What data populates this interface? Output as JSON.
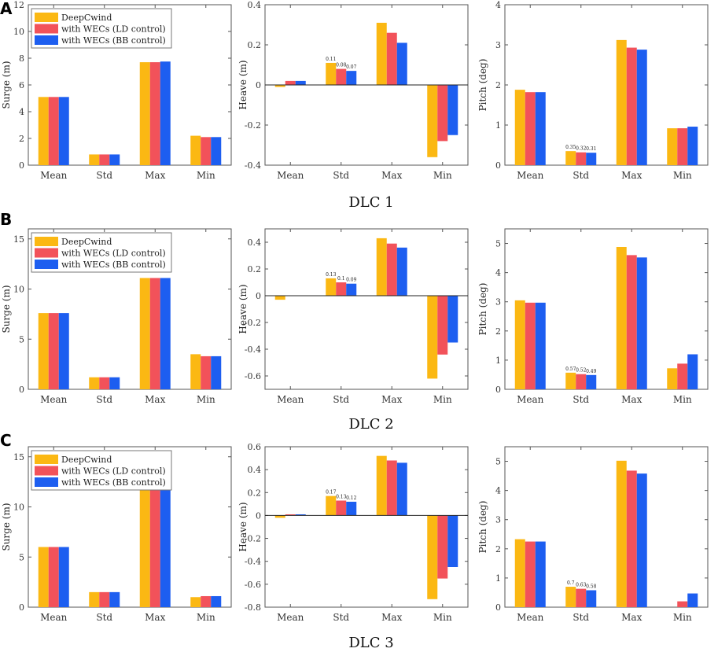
{
  "colors": {
    "DeepCwind": "#fbb813",
    "with WECs (LD control)": "#f2525a",
    "with WECs (BB control)": "#1d5ef0",
    "axis": "#555555",
    "zero_line": "#222222"
  },
  "rows": [
    {
      "letter": "A",
      "title": "DLC 1",
      "charts": [
        {
          "type": "bar",
          "ylabel": "Surge (m)",
          "xlabel": "",
          "categories": [
            "Mean",
            "Std",
            "Max",
            "Min"
          ],
          "ylim": [
            0,
            12
          ],
          "yticks": [
            0,
            2,
            4,
            6,
            8,
            10,
            12
          ],
          "ytick_labels": [
            "0",
            "2",
            "4",
            "6",
            "8",
            "10",
            "12"
          ],
          "legend": [
            "DeepCwind",
            "with WECs (LD control)",
            "with WECs (BB control)"
          ],
          "series": [
            {
              "name": "DeepCwind",
              "values": [
                5.1,
                0.8,
                7.7,
                2.2
              ]
            },
            {
              "name": "with WECs (LD control)",
              "values": [
                5.1,
                0.8,
                7.7,
                2.1
              ]
            },
            {
              "name": "with WECs (BB control)",
              "values": [
                5.1,
                0.8,
                7.75,
                2.1
              ]
            }
          ]
        },
        {
          "type": "bar",
          "ylabel": "Heave (m)",
          "xlabel": "",
          "categories": [
            "Mean",
            "Std",
            "Max",
            "Min"
          ],
          "ylim": [
            -0.4,
            0.4
          ],
          "yticks": [
            -0.4,
            -0.2,
            0,
            0.2,
            0.4
          ],
          "ytick_labels": [
            "-0.4",
            "-0.2",
            "0",
            "0.2",
            "0.4"
          ],
          "series": [
            {
              "name": "DeepCwind",
              "values": [
                -0.01,
                0.11,
                0.31,
                -0.36
              ]
            },
            {
              "name": "with WECs (LD control)",
              "values": [
                0.02,
                0.08,
                0.26,
                -0.28
              ]
            },
            {
              "name": "with WECs (BB control)",
              "values": [
                0.02,
                0.07,
                0.21,
                -0.25
              ]
            }
          ],
          "annotations": [
            {
              "category": "Std",
              "labels": [
                "0.11",
                "0.08",
                "0.07"
              ]
            }
          ]
        },
        {
          "type": "bar",
          "ylabel": "Pitch (deg)",
          "xlabel": "",
          "categories": [
            "Mean",
            "Std",
            "Max",
            "Min"
          ],
          "ylim": [
            0,
            4
          ],
          "yticks": [
            0,
            1,
            2,
            3,
            4
          ],
          "ytick_labels": [
            "0",
            "1",
            "2",
            "3",
            "4"
          ],
          "series": [
            {
              "name": "DeepCwind",
              "values": [
                1.88,
                0.35,
                3.12,
                0.92
              ]
            },
            {
              "name": "with WECs (LD control)",
              "values": [
                1.82,
                0.32,
                2.93,
                0.92
              ]
            },
            {
              "name": "with WECs (BB control)",
              "values": [
                1.82,
                0.31,
                2.88,
                0.96
              ]
            }
          ],
          "annotations": [
            {
              "category": "Std",
              "labels": [
                "0.35",
                "0.32",
                "0.31"
              ]
            }
          ]
        }
      ]
    },
    {
      "letter": "B",
      "title": "DLC 2",
      "charts": [
        {
          "type": "bar",
          "ylabel": "Surge (m)",
          "xlabel": "",
          "categories": [
            "Mean",
            "Std",
            "Max",
            "Min"
          ],
          "ylim": [
            0,
            16
          ],
          "yticks": [
            0,
            5,
            10,
            15
          ],
          "ytick_labels": [
            "0",
            "5",
            "10",
            "15"
          ],
          "legend": [
            "DeepCwind",
            "with WECs (LD control)",
            "with WECs (BB control)"
          ],
          "series": [
            {
              "name": "DeepCwind",
              "values": [
                7.6,
                1.2,
                11.1,
                3.5
              ]
            },
            {
              "name": "with WECs (LD control)",
              "values": [
                7.6,
                1.2,
                11.1,
                3.3
              ]
            },
            {
              "name": "with WECs (BB control)",
              "values": [
                7.6,
                1.2,
                11.1,
                3.3
              ]
            }
          ]
        },
        {
          "type": "bar",
          "ylabel": "Heave (m)",
          "xlabel": "",
          "categories": [
            "Mean",
            "Std",
            "Max",
            "Min"
          ],
          "ylim": [
            -0.7,
            0.5
          ],
          "yticks": [
            -0.6,
            -0.4,
            -0.2,
            0,
            0.2,
            0.4
          ],
          "ytick_labels": [
            "-0.6",
            "-0.4",
            "-0.2",
            "0",
            "0.2",
            "0.4"
          ],
          "series": [
            {
              "name": "DeepCwind",
              "values": [
                -0.03,
                0.13,
                0.43,
                -0.62
              ]
            },
            {
              "name": "with WECs (LD control)",
              "values": [
                0.0,
                0.1,
                0.39,
                -0.44
              ]
            },
            {
              "name": "with WECs (BB control)",
              "values": [
                0.0,
                0.09,
                0.36,
                -0.35
              ]
            }
          ],
          "annotations": [
            {
              "category": "Std",
              "labels": [
                "0.13",
                "0.1",
                "0.09"
              ]
            }
          ]
        },
        {
          "type": "bar",
          "ylabel": "Pitch (deg)",
          "xlabel": "",
          "categories": [
            "Mean",
            "Std",
            "Max",
            "Min"
          ],
          "ylim": [
            0,
            5.5
          ],
          "yticks": [
            0,
            1,
            2,
            3,
            4,
            5
          ],
          "ytick_labels": [
            "0",
            "1",
            "2",
            "3",
            "4",
            "5"
          ],
          "series": [
            {
              "name": "DeepCwind",
              "values": [
                3.05,
                0.57,
                4.88,
                0.72
              ]
            },
            {
              "name": "with WECs (LD control)",
              "values": [
                2.97,
                0.52,
                4.6,
                0.88
              ]
            },
            {
              "name": "with WECs (BB control)",
              "values": [
                2.97,
                0.49,
                4.52,
                1.2
              ]
            }
          ],
          "annotations": [
            {
              "category": "Std",
              "labels": [
                "0.57",
                "0.52",
                "0.49"
              ]
            }
          ]
        }
      ]
    },
    {
      "letter": "C",
      "title": "DLC 3",
      "charts": [
        {
          "type": "bar",
          "ylabel": "Surge (m)",
          "xlabel": "",
          "categories": [
            "Mean",
            "Std",
            "Max",
            "Min"
          ],
          "ylim": [
            0,
            16
          ],
          "yticks": [
            0,
            5,
            10,
            15
          ],
          "ytick_labels": [
            "0",
            "5",
            "10",
            "15"
          ],
          "legend": [
            "DeepCwind",
            "with WECs (LD control)",
            "with WECs (BB control)"
          ],
          "series": [
            {
              "name": "DeepCwind",
              "values": [
                6.0,
                1.5,
                12.0,
                1.0
              ]
            },
            {
              "name": "with WECs (LD control)",
              "values": [
                6.0,
                1.5,
                11.7,
                1.1
              ]
            },
            {
              "name": "with WECs (BB control)",
              "values": [
                6.0,
                1.5,
                11.7,
                1.1
              ]
            }
          ]
        },
        {
          "type": "bar",
          "ylabel": "Heave (m)",
          "xlabel": "",
          "categories": [
            "Mean",
            "Std",
            "Max",
            "Min"
          ],
          "ylim": [
            -0.8,
            0.6
          ],
          "yticks": [
            -0.8,
            -0.6,
            -0.4,
            -0.2,
            0,
            0.2,
            0.4,
            0.6
          ],
          "ytick_labels": [
            "-0.8",
            "-0.6",
            "-0.4",
            "-0.2",
            "0",
            "0.2",
            "0.4",
            "0.6"
          ],
          "series": [
            {
              "name": "DeepCwind",
              "values": [
                -0.02,
                0.17,
                0.52,
                -0.73
              ]
            },
            {
              "name": "with WECs (LD control)",
              "values": [
                0.01,
                0.13,
                0.48,
                -0.55
              ]
            },
            {
              "name": "with WECs (BB control)",
              "values": [
                0.01,
                0.12,
                0.46,
                -0.45
              ]
            }
          ],
          "annotations": [
            {
              "category": "Std",
              "labels": [
                "0.17",
                "0.13",
                "0.12"
              ]
            }
          ]
        },
        {
          "type": "bar",
          "ylabel": "Pitch (deg)",
          "xlabel": "",
          "categories": [
            "Mean",
            "Std",
            "Max",
            "Min"
          ],
          "ylim": [
            0,
            5.5
          ],
          "yticks": [
            0,
            1,
            2,
            3,
            4,
            5
          ],
          "ytick_labels": [
            "0",
            "1",
            "2",
            "3",
            "4",
            "5"
          ],
          "series": [
            {
              "name": "DeepCwind",
              "values": [
                2.33,
                0.7,
                5.02,
                0.0
              ]
            },
            {
              "name": "with WECs (LD control)",
              "values": [
                2.25,
                0.63,
                4.68,
                0.2
              ]
            },
            {
              "name": "with WECs (BB control)",
              "values": [
                2.25,
                0.58,
                4.58,
                0.47
              ]
            }
          ],
          "annotations": [
            {
              "category": "Std",
              "labels": [
                "0.7",
                "0.63",
                "0.58"
              ]
            }
          ]
        }
      ]
    }
  ]
}
